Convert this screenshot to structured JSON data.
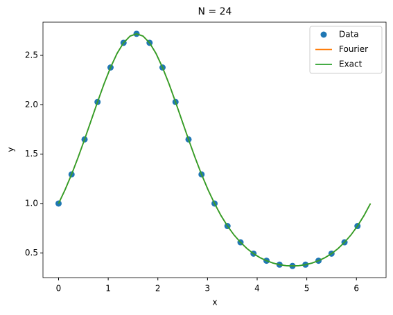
{
  "chart_data": {
    "type": "line",
    "title": "N = 24",
    "xlabel": "x",
    "ylabel": "y",
    "xlim": [
      -0.314,
      6.597
    ],
    "xticks": [
      0,
      1,
      2,
      3,
      4,
      5,
      6
    ],
    "ylim": [
      0.25,
      2.836
    ],
    "yticks": [
      0.5,
      {
        "value": 1,
        "label": "1.0"
      },
      1.5,
      {
        "value": 2,
        "label": "2.0"
      },
      2.5
    ],
    "legend": "upper right",
    "series": [
      {
        "name": "Data",
        "color": "#1f77b4",
        "mode": "markers",
        "x": [
          0,
          0.262,
          0.524,
          0.785,
          1.047,
          1.309,
          1.571,
          1.833,
          2.094,
          2.356,
          2.618,
          2.88,
          3.142,
          3.403,
          3.665,
          3.927,
          4.189,
          4.451,
          4.712,
          4.974,
          5.236,
          5.498,
          5.76,
          6.021
        ],
        "values": [
          1,
          1.295,
          1.649,
          2.028,
          2.377,
          2.627,
          2.718,
          2.627,
          2.377,
          2.028,
          1.649,
          1.295,
          1,
          0.772,
          0.607,
          0.493,
          0.421,
          0.381,
          0.368,
          0.381,
          0.421,
          0.493,
          0.607,
          0.772
        ]
      },
      {
        "name": "Fourier",
        "color": "#ff7f0e",
        "mode": "lines",
        "x": [
          0,
          0.131,
          0.262,
          0.393,
          0.524,
          0.654,
          0.785,
          0.916,
          1.047,
          1.178,
          1.309,
          1.44,
          1.571,
          1.702,
          1.833,
          1.963,
          2.094,
          2.225,
          2.356,
          2.487,
          2.618,
          2.749,
          2.88,
          3.011,
          3.142,
          3.272,
          3.403,
          3.534,
          3.665,
          3.796,
          3.927,
          4.058,
          4.189,
          4.32,
          4.451,
          4.581,
          4.712,
          4.843,
          4.974,
          5.105,
          5.236,
          5.367,
          5.498,
          5.629,
          5.76,
          5.89,
          6.021,
          6.152,
          6.283
        ],
        "values": [
          1,
          1.139,
          1.295,
          1.466,
          1.649,
          1.838,
          2.028,
          2.211,
          2.377,
          2.519,
          2.627,
          2.695,
          2.718,
          2.695,
          2.627,
          2.519,
          2.377,
          2.211,
          2.028,
          1.838,
          1.649,
          1.466,
          1.295,
          1.139,
          1,
          0.878,
          0.772,
          0.682,
          0.607,
          0.544,
          0.493,
          0.452,
          0.421,
          0.397,
          0.381,
          0.371,
          0.368,
          0.371,
          0.381,
          0.397,
          0.421,
          0.452,
          0.493,
          0.544,
          0.607,
          0.682,
          0.772,
          0.878,
          1
        ]
      },
      {
        "name": "Exact",
        "color": "#2ca02c",
        "mode": "lines",
        "x": [
          0,
          0.131,
          0.262,
          0.393,
          0.524,
          0.654,
          0.785,
          0.916,
          1.047,
          1.178,
          1.309,
          1.44,
          1.571,
          1.702,
          1.833,
          1.963,
          2.094,
          2.225,
          2.356,
          2.487,
          2.618,
          2.749,
          2.88,
          3.011,
          3.142,
          3.272,
          3.403,
          3.534,
          3.665,
          3.796,
          3.927,
          4.058,
          4.189,
          4.32,
          4.451,
          4.581,
          4.712,
          4.843,
          4.974,
          5.105,
          5.236,
          5.367,
          5.498,
          5.629,
          5.76,
          5.89,
          6.021,
          6.152,
          6.283
        ],
        "values": [
          1,
          1.139,
          1.295,
          1.466,
          1.649,
          1.838,
          2.028,
          2.211,
          2.377,
          2.519,
          2.627,
          2.695,
          2.718,
          2.695,
          2.627,
          2.519,
          2.377,
          2.211,
          2.028,
          1.838,
          1.649,
          1.466,
          1.295,
          1.139,
          1,
          0.878,
          0.772,
          0.682,
          0.607,
          0.544,
          0.493,
          0.452,
          0.421,
          0.397,
          0.381,
          0.371,
          0.368,
          0.371,
          0.381,
          0.397,
          0.421,
          0.452,
          0.493,
          0.544,
          0.607,
          0.682,
          0.772,
          0.878,
          1
        ]
      }
    ]
  }
}
